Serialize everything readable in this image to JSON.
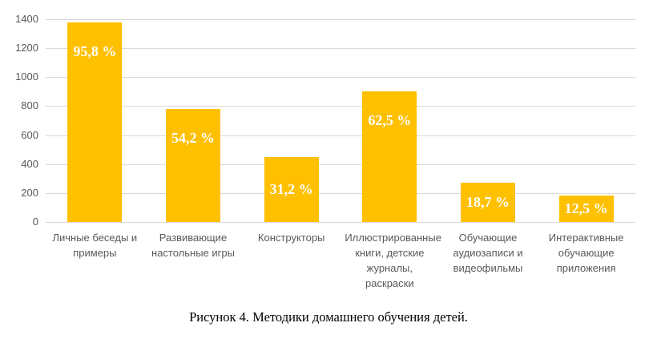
{
  "figure": {
    "caption": "Рисунок 4. Методики домашнего обучения детей."
  },
  "chart_data": {
    "type": "bar",
    "title": "",
    "categories": [
      "Личные беседы и примеры",
      "Развивающие настольные игры",
      "Конструкторы",
      "Иллюстрированные книги, детские журналы, раскраски",
      "Обучающие аудиозаписи и видеофильмы",
      "Интерактивные обучающие приложения"
    ],
    "values": [
      1380,
      780,
      450,
      900,
      270,
      180
    ],
    "bar_labels": [
      "95,8 %",
      "54,2 %",
      "31,2 %",
      "62,5 %",
      "18,7 %",
      "12,5 %"
    ],
    "xlabel": "",
    "ylabel": "",
    "ylim": [
      0,
      1400
    ],
    "yticks": [
      0,
      200,
      400,
      600,
      800,
      1000,
      1200,
      1400
    ],
    "grid": true,
    "legend": false,
    "colors": {
      "bar": "#ffc000",
      "bar_label": "#ffffff",
      "gridline": "#d9d9d9",
      "axis_text": "#595959",
      "caption_text": "#000000",
      "background": "#ffffff"
    }
  }
}
